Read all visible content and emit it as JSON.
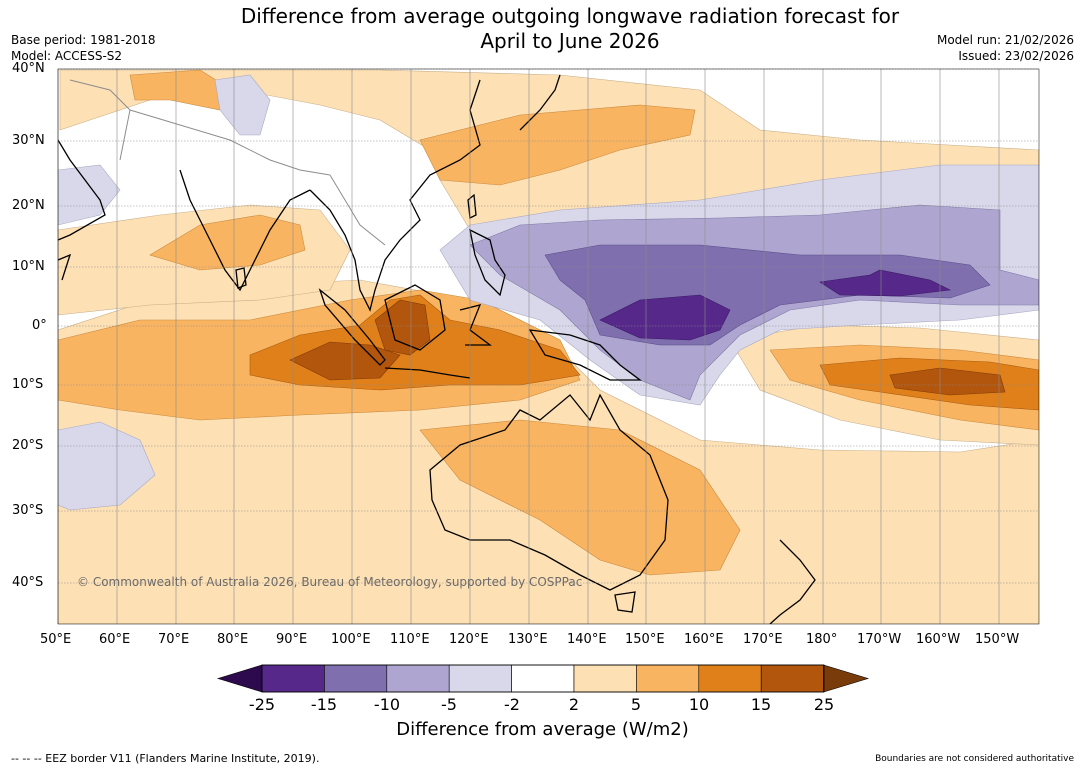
{
  "header": {
    "title_line1": "Difference from average outgoing longwave radiation forecast for",
    "title_line2": "April to June 2026",
    "base_period": "Base period: 1981-2018",
    "model": "Model: ACCESS-S2",
    "model_run": "Model run: 21/02/2026",
    "issued": "Issued: 23/02/2026"
  },
  "map": {
    "lat_labels": [
      "40°N",
      "30°N",
      "20°N",
      "10°N",
      "0°",
      "10°S",
      "20°S",
      "30°S",
      "40°S"
    ],
    "lon_labels": [
      "50°E",
      "60°E",
      "70°E",
      "80°E",
      "90°E",
      "100°E",
      "110°E",
      "120°E",
      "130°E",
      "140°E",
      "150°E",
      "160°E",
      "170°E",
      "180°",
      "170°W",
      "160°W",
      "150°W"
    ],
    "copyright": "© Commonwealth of Australia 2026, Bureau of Meteorology, supported by COSPPac"
  },
  "colorbar": {
    "ticks": [
      "-25",
      "-15",
      "-10",
      "-5",
      "-2",
      "2",
      "5",
      "10",
      "15",
      "25"
    ],
    "colors": [
      "#2d0a4e",
      "#56288a",
      "#7f6fae",
      "#aea6d0",
      "#d8d8ea",
      "#ffffff",
      "#fde0b4",
      "#f9b461",
      "#e0801b",
      "#b3560d",
      "#7a3b0b"
    ],
    "label": "Difference from average (W/m2)"
  },
  "footer": {
    "eez_note": "--  --  -- EEZ border V11 (Flanders Marine Institute, 2019).",
    "disclaimer": "Boundaries are not considered authoritative"
  }
}
